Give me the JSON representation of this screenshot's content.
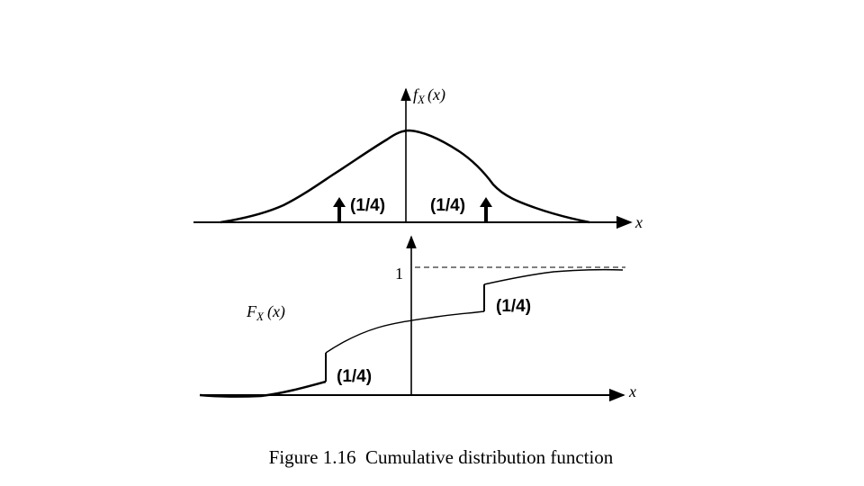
{
  "pdf_panel": {
    "ylabel_main": "f",
    "ylabel_sub": "X",
    "ylabel_arg": "(x)",
    "xlabel": "x",
    "impulse_left_label": "(1/4)",
    "impulse_right_label": "(1/4)"
  },
  "cdf_panel": {
    "ylabel_main": "F",
    "ylabel_sub": "X",
    "ylabel_arg": "(x)",
    "xlabel": "x",
    "one_tick_label": "1",
    "jump_left_label": "(1/4)",
    "jump_right_label": "(1/4)"
  },
  "caption": "Figure 1.16  Cumulative distribution function"
}
